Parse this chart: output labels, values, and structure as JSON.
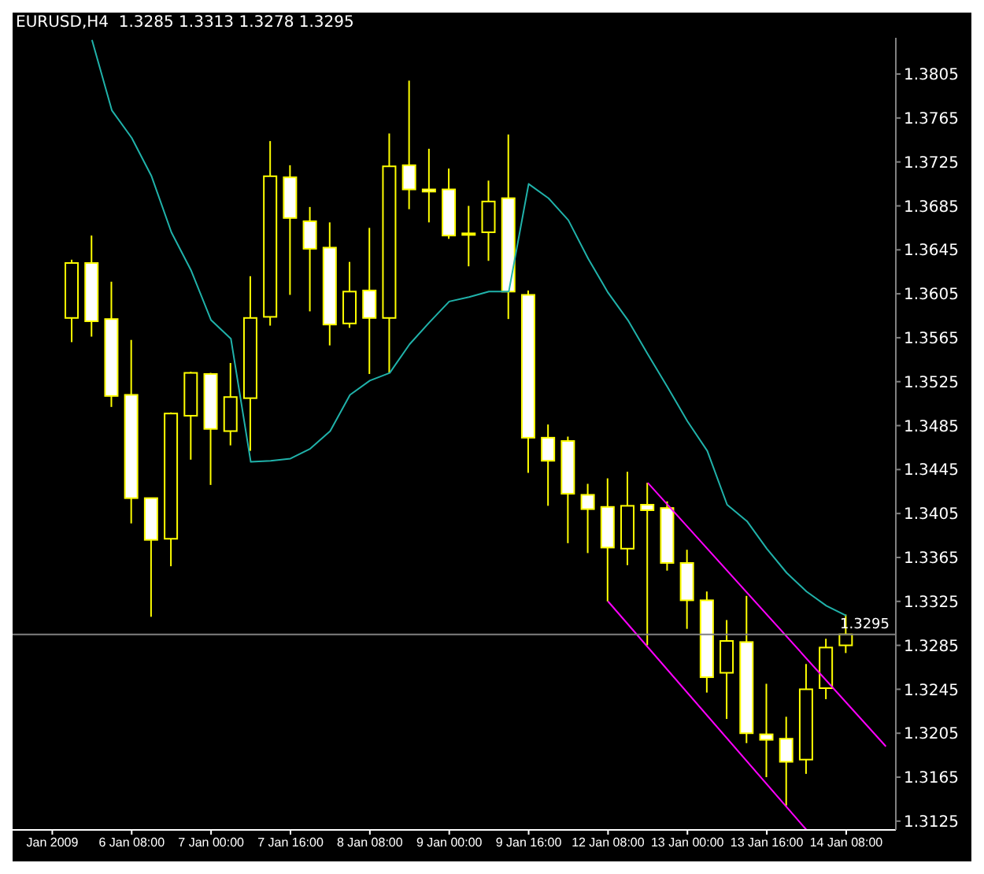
{
  "chart_data": {
    "type": "candlestick",
    "title": "EURUSD,H4  1.3285 1.3313 1.3278 1.3295",
    "color": "#ffff00",
    "categories": [
      "Jan 2009",
      null,
      null,
      null,
      "6 Jan 08:00",
      null,
      null,
      null,
      "7 Jan 00:00",
      null,
      null,
      null,
      "7 Jan 16:00",
      null,
      null,
      null,
      "8 Jan 08:00",
      null,
      null,
      null,
      "9 Jan 00:00",
      null,
      null,
      null,
      "9 Jan 16:00",
      null,
      null,
      null,
      "12 Jan 08:00",
      null,
      null,
      null,
      "13 Jan 00:00",
      null,
      null,
      null,
      "13 Jan 16:00",
      null,
      null,
      null,
      "14 Jan 08:00",
      null,
      null
    ],
    "ohlc": [
      null,
      [
        1.3583,
        1.3636,
        1.3561,
        1.3633
      ],
      [
        1.3633,
        1.3658,
        1.3566,
        1.358
      ],
      [
        1.3582,
        1.3616,
        1.3502,
        1.3512
      ],
      [
        1.3513,
        1.3563,
        1.3396,
        1.3419
      ],
      [
        1.3419,
        1.3419,
        1.3311,
        1.3381
      ],
      [
        1.3382,
        1.3497,
        1.3357,
        1.3496
      ],
      [
        1.3494,
        1.3534,
        1.3454,
        1.3533
      ],
      [
        1.3532,
        1.3533,
        1.3431,
        1.3482
      ],
      [
        1.348,
        1.3542,
        1.3467,
        1.3511
      ],
      [
        1.351,
        1.3621,
        1.3462,
        1.3583
      ],
      [
        1.3584,
        1.3744,
        1.3576,
        1.3712
      ],
      [
        1.3711,
        1.3722,
        1.3604,
        1.3674
      ],
      [
        1.3671,
        1.3684,
        1.3589,
        1.3646
      ],
      [
        1.3647,
        1.367,
        1.3558,
        1.3577
      ],
      [
        1.3578,
        1.3634,
        1.3574,
        1.3607
      ],
      [
        1.3608,
        1.3665,
        1.3532,
        1.3583
      ],
      [
        1.3583,
        1.3751,
        1.3533,
        1.3721
      ],
      [
        1.3722,
        1.3799,
        1.3682,
        1.37
      ],
      [
        1.37,
        1.3737,
        1.367,
        1.3698
      ],
      [
        1.37,
        1.3719,
        1.3655,
        1.3658
      ],
      [
        1.366,
        1.3685,
        1.363,
        1.366
      ],
      [
        1.3661,
        1.3708,
        1.3635,
        1.3689
      ],
      [
        1.3692,
        1.375,
        1.3582,
        1.3607
      ],
      [
        1.3604,
        1.3608,
        1.3442,
        1.3474
      ],
      [
        1.3474,
        1.3486,
        1.3412,
        1.3453
      ],
      [
        1.3471,
        1.3475,
        1.3378,
        1.3423
      ],
      [
        1.3422,
        1.3432,
        1.3369,
        1.3409
      ],
      [
        1.3411,
        1.3437,
        1.3325,
        1.3374
      ],
      [
        1.3373,
        1.3443,
        1.3358,
        1.3412
      ],
      [
        1.3413,
        1.3433,
        1.3285,
        1.3408
      ],
      [
        1.341,
        1.3416,
        1.3353,
        1.336
      ],
      [
        1.336,
        1.3372,
        1.33,
        1.3326
      ],
      [
        1.3326,
        1.3334,
        1.3242,
        1.3256
      ],
      [
        1.326,
        1.3308,
        1.3218,
        1.3289
      ],
      [
        1.3288,
        1.333,
        1.3196,
        1.3205
      ],
      [
        1.3204,
        1.325,
        1.3165,
        1.3199
      ],
      [
        1.32,
        1.322,
        1.3139,
        1.3179
      ],
      [
        1.3181,
        1.3268,
        1.3168,
        1.3245
      ],
      [
        1.3246,
        1.3291,
        1.3236,
        1.3283
      ],
      [
        1.3285,
        1.3313,
        1.3278,
        1.3295
      ],
      null,
      null
    ],
    "series": [
      {
        "type": "line",
        "color": "#20b2aa",
        "values": [
          null,
          null,
          1.3836,
          1.3772,
          1.3747,
          1.3712,
          1.3661,
          1.3626,
          1.3581,
          1.3564,
          1.3452,
          1.3453,
          1.3455,
          1.3464,
          1.348,
          1.3513,
          1.3526,
          1.3533,
          1.3559,
          1.3579,
          1.3598,
          1.3602,
          1.3607,
          1.3607,
          1.3705,
          1.3692,
          1.3672,
          1.3637,
          1.3606,
          1.3581,
          1.355,
          1.352,
          1.3489,
          1.3462,
          1.3413,
          1.3398,
          1.3373,
          1.3351,
          1.3334,
          1.3321,
          1.3312,
          null,
          null
        ]
      },
      {
        "type": "line",
        "color": "#ff00ff",
        "values": [
          null,
          null,
          null,
          null,
          null,
          null,
          null,
          null,
          null,
          null,
          null,
          null,
          null,
          null,
          null,
          null,
          null,
          null,
          null,
          null,
          null,
          null,
          null,
          null,
          null,
          null,
          null,
          null,
          null,
          null,
          1.3433,
          null,
          null,
          null,
          null,
          null,
          null,
          null,
          null,
          null,
          null,
          null,
          1.3193
        ]
      },
      {
        "type": "line",
        "color": "#ff00ff",
        "values": [
          null,
          null,
          null,
          null,
          null,
          null,
          null,
          null,
          null,
          null,
          null,
          null,
          null,
          null,
          null,
          null,
          null,
          null,
          null,
          null,
          null,
          null,
          null,
          null,
          null,
          null,
          null,
          null,
          1.3325,
          null,
          null,
          null,
          null,
          null,
          null,
          null,
          null,
          null,
          1.3117,
          null,
          null,
          null,
          null
        ]
      }
    ],
    "ylim": [
      1.3117,
      1.3838
    ],
    "yticks": [
      1.3125,
      1.3165,
      1.3205,
      1.3245,
      1.3285,
      1.3325,
      1.3365,
      1.3405,
      1.3445,
      1.3485,
      1.3525,
      1.3565,
      1.3605,
      1.3645,
      1.3685,
      1.3725,
      1.3765,
      1.3805
    ],
    "ref_lines": [
      {
        "axis": "y",
        "value": 1.3295,
        "label": "1.3295",
        "color": "#808080"
      }
    ]
  }
}
